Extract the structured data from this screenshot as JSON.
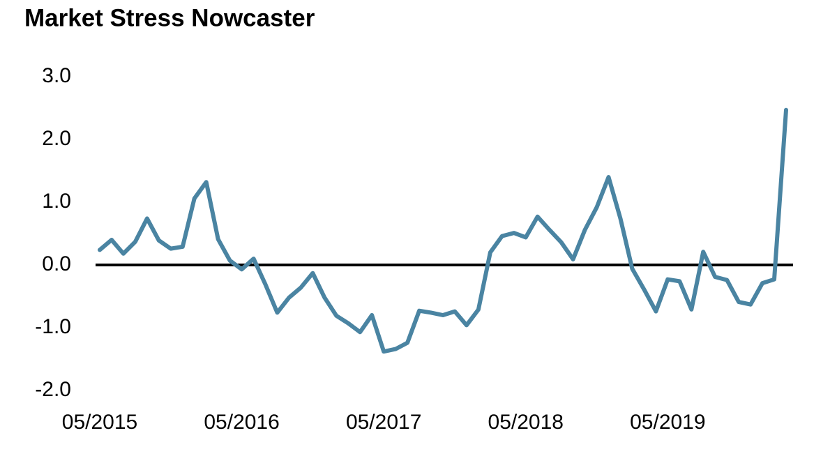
{
  "chart_data": {
    "type": "line",
    "title": "Market Stress Nowcaster",
    "categories": [
      "05/2015",
      null,
      null,
      null,
      null,
      null,
      null,
      null,
      null,
      null,
      null,
      null,
      "05/2016",
      null,
      null,
      null,
      null,
      null,
      null,
      null,
      null,
      null,
      null,
      null,
      "05/2017",
      null,
      null,
      null,
      null,
      null,
      null,
      null,
      null,
      null,
      null,
      null,
      "05/2018",
      null,
      null,
      null,
      null,
      null,
      null,
      null,
      null,
      null,
      null,
      null,
      "05/2019",
      null,
      null,
      null,
      null,
      null,
      null,
      null,
      null,
      null,
      null
    ],
    "series": [
      {
        "color": "#4a84a2",
        "values": [
          0.24,
          0.4,
          0.18,
          0.37,
          0.74,
          0.39,
          0.26,
          0.29,
          1.06,
          1.32,
          0.41,
          0.07,
          -0.07,
          0.1,
          -0.31,
          -0.76,
          -0.52,
          -0.36,
          -0.13,
          -0.52,
          -0.81,
          -0.93,
          -1.07,
          -0.8,
          -1.38,
          -1.34,
          -1.24,
          -0.73,
          -0.76,
          -0.8,
          -0.74,
          -0.96,
          -0.71,
          0.2,
          0.46,
          0.51,
          0.44,
          0.77,
          0.56,
          0.36,
          0.09,
          0.56,
          0.92,
          1.4,
          0.74,
          -0.06,
          -0.39,
          -0.74,
          -0.23,
          -0.26,
          -0.71,
          0.21,
          -0.19,
          -0.24,
          -0.59,
          -0.63,
          -0.29,
          -0.23,
          2.47
        ]
      }
    ],
    "ylim": [
      -2,
      3
    ],
    "yticks": [
      {
        "value": 3,
        "label": "3.0"
      },
      {
        "value": 2,
        "label": "2.0"
      },
      {
        "value": 1,
        "label": "1.0"
      },
      {
        "value": 0,
        "label": "0.0"
      },
      {
        "value": -1,
        "label": "-1.0"
      },
      {
        "value": -2,
        "label": "-2.0"
      }
    ],
    "zero_line": true,
    "grid": false
  }
}
